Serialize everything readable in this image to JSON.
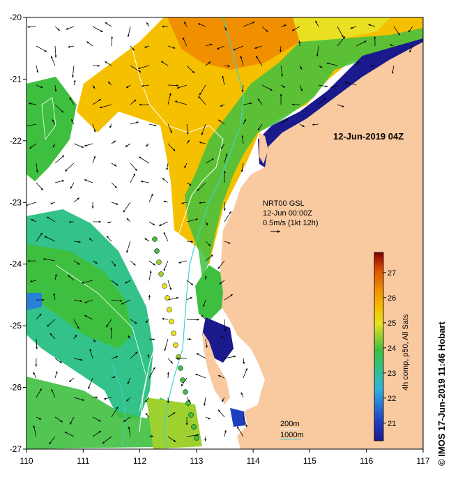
{
  "map": {
    "date_title": "12-Jun-2019 04Z",
    "credit": "© IMOS 17-Jun-2019 11:46 Hobart",
    "x_ticks": [
      "110",
      "111",
      "112",
      "113",
      "114",
      "115",
      "116",
      "117"
    ],
    "y_ticks": [
      "-20",
      "-21",
      "-22",
      "-23",
      "-24",
      "-25",
      "-26",
      "-27"
    ],
    "x_range": [
      110,
      117
    ],
    "y_range": [
      -27,
      -20
    ],
    "current_legend": {
      "line1": "NRT00 GSL",
      "line2": "12-Jun 00:00Z",
      "line3": "0.5m/s (1kt 12h)"
    },
    "isobaths": {
      "label_200": "200m",
      "label_1000": "1000m"
    },
    "colorbar": {
      "label": "4h comp, p50, All Sats",
      "ticks": [
        "21",
        "22",
        "23",
        "24",
        "25",
        "26",
        "27"
      ],
      "range": [
        20.3,
        27.8
      ],
      "colors": [
        "#1a1a8c",
        "#1f3fbf",
        "#2a7fd6",
        "#2fb3d8",
        "#33c28a",
        "#3fbf3f",
        "#9ed12f",
        "#e8e020",
        "#f5c000",
        "#f09000",
        "#e05500",
        "#b02000",
        "#7a0000"
      ]
    },
    "colors": {
      "land": "#f9c9a0",
      "contour_200": "#ffffff",
      "contour_1000": "#3fd0d0",
      "vector": "#000000"
    }
  }
}
